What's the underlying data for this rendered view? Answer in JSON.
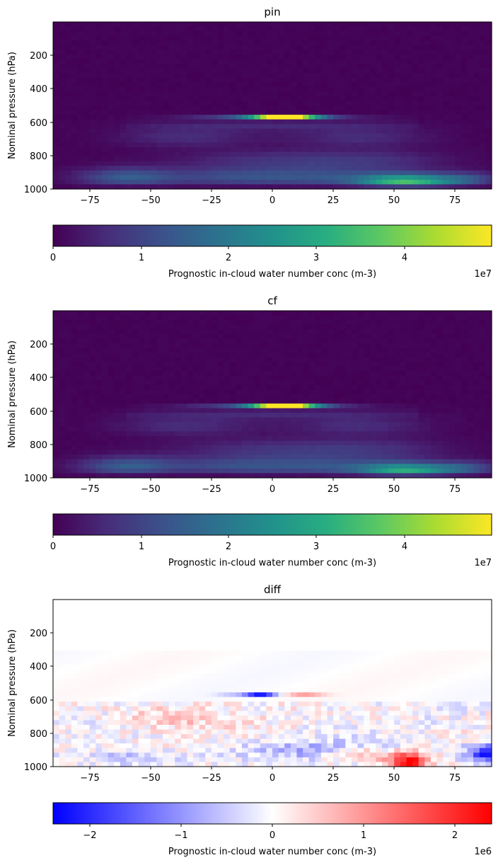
{
  "chart_data": [
    {
      "type": "heatmap",
      "title": "pin",
      "xlabel": "",
      "ylabel": "Nominal pressure (hPa)",
      "xlim": [
        -90,
        90
      ],
      "ylim": [
        1000,
        0
      ],
      "x_ticks": [
        "−75",
        "−50",
        "−25",
        "0",
        "25",
        "50",
        "75"
      ],
      "y_ticks": [
        "200",
        "400",
        "600",
        "800",
        "1000"
      ],
      "colormap": "viridis",
      "colorbar": {
        "label": "Prognostic in-cloud water number conc (m-3)",
        "range": [
          0,
          49500000.0
        ],
        "ticks": [
          "0",
          "1",
          "2",
          "3",
          "4"
        ],
        "offset": "1e7"
      },
      "features": {
        "peak_band": {
          "pressure_hPa": 570,
          "lat_range": [
            -15,
            15
          ],
          "peak_lat": 5,
          "peak_value": 49000000.0
        },
        "low_level_max": {
          "pressure_hPa": 960,
          "lat": 55,
          "value": 32000000.0
        }
      }
    },
    {
      "type": "heatmap",
      "title": "cf",
      "xlabel": "",
      "ylabel": "Nominal pressure (hPa)",
      "xlim": [
        -90,
        90
      ],
      "ylim": [
        1000,
        0
      ],
      "x_ticks": [
        "−75",
        "−50",
        "−25",
        "0",
        "25",
        "50",
        "75"
      ],
      "y_ticks": [
        "200",
        "400",
        "600",
        "800",
        "1000"
      ],
      "colormap": "viridis",
      "colorbar": {
        "label": "Prognostic in-cloud water number conc (m-3)",
        "range": [
          0,
          49500000.0
        ],
        "ticks": [
          "0",
          "1",
          "2",
          "3",
          "4"
        ],
        "offset": "1e7"
      },
      "features": {
        "peak_band": {
          "pressure_hPa": 570,
          "lat_range": [
            -15,
            15
          ],
          "peak_lat": 5,
          "peak_value": 49000000.0
        },
        "low_level_max": {
          "pressure_hPa": 960,
          "lat": 55,
          "value": 28000000.0
        }
      }
    },
    {
      "type": "heatmap",
      "title": "diff",
      "xlabel": "",
      "ylabel": "Nominal pressure (hPa)",
      "xlim": [
        -90,
        90
      ],
      "ylim": [
        1000,
        0
      ],
      "x_ticks": [
        "−75",
        "−50",
        "−25",
        "0",
        "25",
        "50",
        "75"
      ],
      "y_ticks": [
        "200",
        "400",
        "600",
        "800",
        "1000"
      ],
      "colormap": "bwr",
      "colorbar": {
        "label": "Prognostic in-cloud water number conc (m-3)",
        "range": [
          -2400000.0,
          2400000.0
        ],
        "ticks": [
          "−2",
          "−1",
          "0",
          "1",
          "2"
        ],
        "offset": "1e6"
      },
      "features": {
        "blue_patch_upper": {
          "pressure_hPa": 570,
          "lat_range": [
            -10,
            0
          ],
          "value": -2200000.0
        },
        "red_patch_lower": {
          "pressure_hPa": 970,
          "lat": 55,
          "value": 2400000.0
        },
        "blue_patch_lower_right": {
          "pressure_hPa": 920,
          "lat": 88,
          "value": -2200000.0
        }
      }
    }
  ]
}
